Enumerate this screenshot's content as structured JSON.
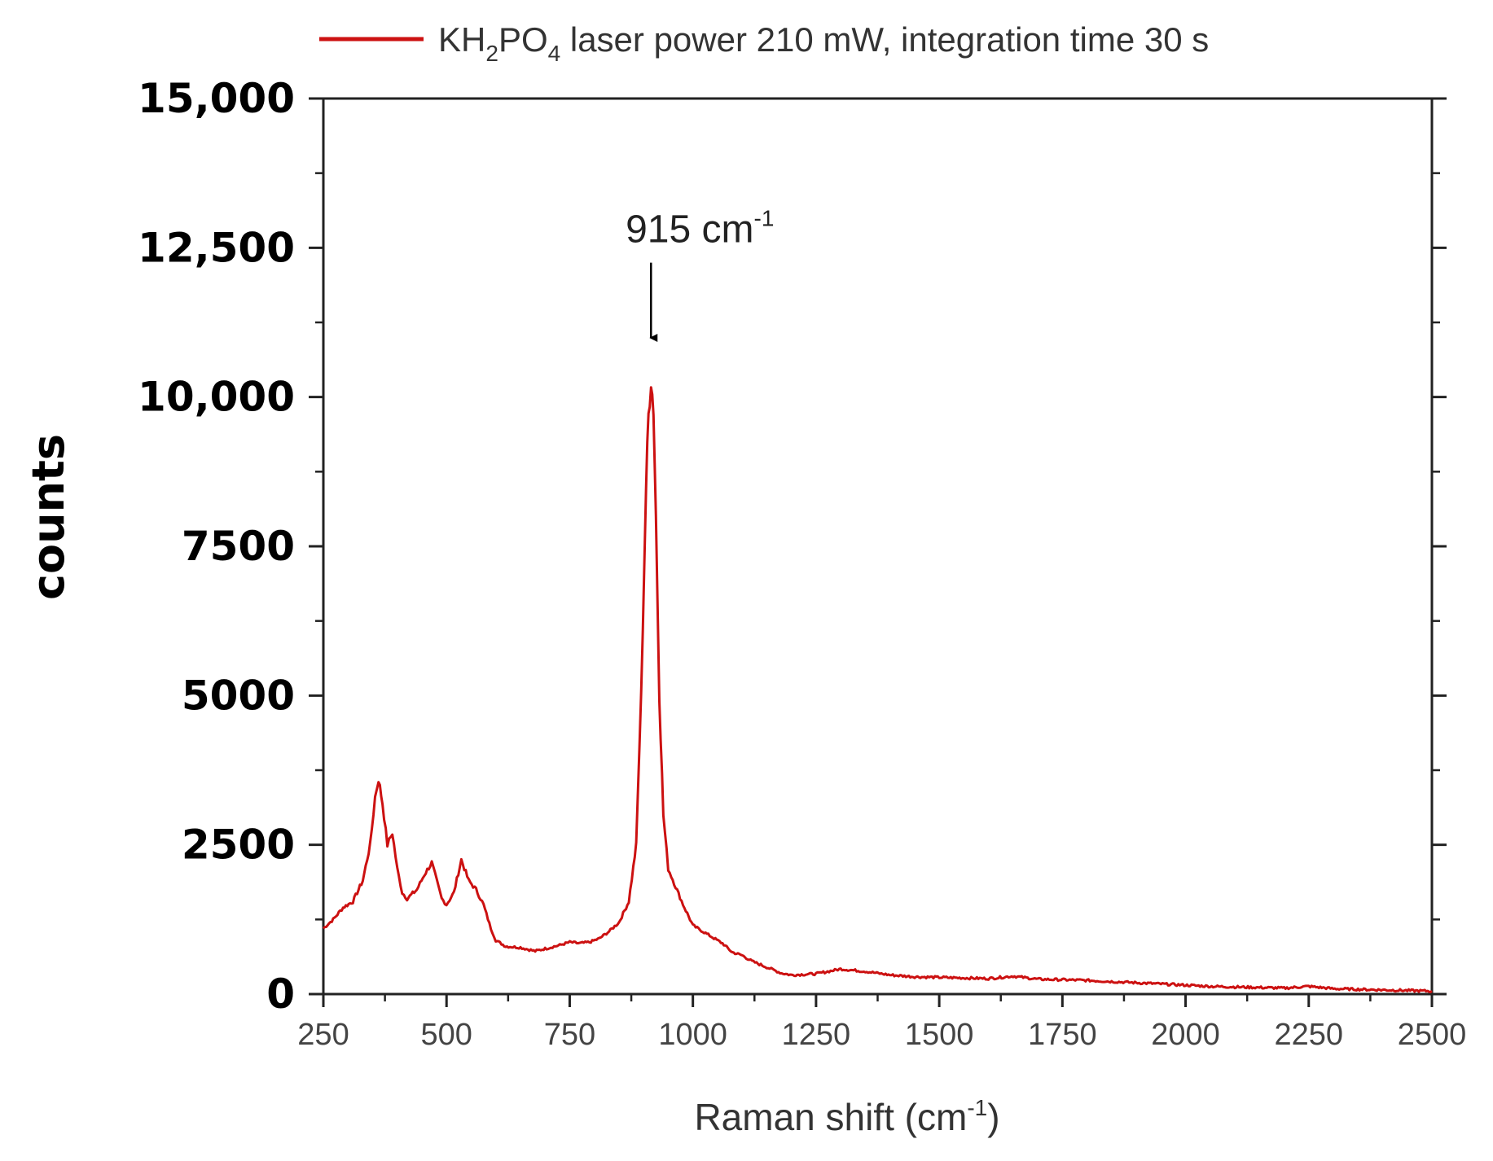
{
  "chart_data": {
    "type": "line",
    "title": "",
    "xlabel": "Raman shift (cm",
    "xlabel_sup": "-1",
    "xlabel_close": ")",
    "ylabel": "counts",
    "xlim": [
      250,
      2500
    ],
    "ylim": [
      0,
      15000
    ],
    "x_ticks": [
      250,
      500,
      750,
      1000,
      1250,
      1500,
      1750,
      2000,
      2250,
      2500
    ],
    "x_tick_labels": [
      "250",
      "500",
      "750",
      "1000",
      "1250",
      "1500",
      "1750",
      "2000",
      "2250",
      "2500"
    ],
    "y_ticks": [
      0,
      2500,
      5000,
      7500,
      10000,
      12500,
      15000
    ],
    "y_tick_labels": [
      "0",
      "2500",
      "5000",
      "7500",
      "10,000",
      "12,500",
      "15,000"
    ],
    "grid": false,
    "legend_position": "top",
    "series": [
      {
        "name": "KH2PO4 laser power 210 mW, integration time 30 s",
        "legend_parts": [
          "KH",
          "2",
          "PO",
          "4",
          " laser power 210 mW, integration time 30 s"
        ],
        "color": "#cc1111",
        "x": [
          250,
          270,
          290,
          310,
          330,
          345,
          355,
          362,
          370,
          380,
          390,
          400,
          410,
          420,
          440,
          455,
          470,
          480,
          490,
          500,
          515,
          530,
          545,
          560,
          575,
          590,
          600,
          620,
          650,
          680,
          700,
          730,
          750,
          770,
          790,
          810,
          830,
          850,
          870,
          885,
          895,
          905,
          910,
          915,
          920,
          925,
          932,
          940,
          950,
          965,
          980,
          1000,
          1020,
          1040,
          1060,
          1080,
          1100,
          1120,
          1150,
          1180,
          1200,
          1250,
          1300,
          1350,
          1400,
          1450,
          1500,
          1550,
          1600,
          1650,
          1700,
          1750,
          1800,
          1850,
          1900,
          1950,
          2000,
          2050,
          2100,
          2150,
          2200,
          2250,
          2300,
          2350,
          2400,
          2450,
          2500
        ],
        "y": [
          1100,
          1250,
          1450,
          1550,
          1900,
          2500,
          3300,
          3600,
          3200,
          2500,
          2700,
          2100,
          1700,
          1600,
          1750,
          2000,
          2200,
          1900,
          1600,
          1500,
          1700,
          2250,
          1900,
          1750,
          1500,
          1100,
          900,
          800,
          780,
          720,
          760,
          820,
          870,
          850,
          870,
          930,
          1050,
          1200,
          1550,
          2500,
          5000,
          8500,
          9700,
          10300,
          9800,
          8000,
          5000,
          3000,
          2100,
          1800,
          1500,
          1150,
          1050,
          950,
          850,
          700,
          650,
          550,
          450,
          350,
          320,
          340,
          420,
          380,
          320,
          290,
          280,
          270,
          260,
          300,
          250,
          240,
          230,
          210,
          190,
          170,
          150,
          130,
          120,
          110,
          100,
          130,
          90,
          80,
          70,
          60,
          50
        ]
      }
    ],
    "annotations": [
      {
        "text": "915 cm",
        "sup": "-1",
        "x": 915,
        "y": 10800,
        "arrow_from_y": 12250,
        "arrow_to_y": 10800
      }
    ]
  }
}
